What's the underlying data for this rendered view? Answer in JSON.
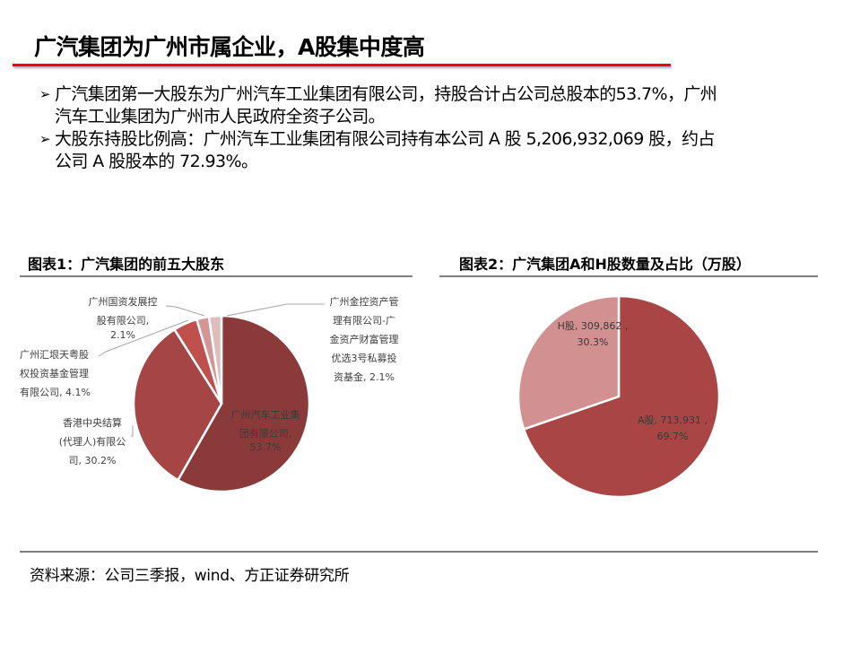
{
  "header": {
    "title": "广汽集团为广州市属企业，A股集中度高"
  },
  "bullets": [
    {
      "marker": "➢",
      "line1": "广汽集团第一大股东为广州汽车工业集团有限公司，持股合计占公司总股本的53.7%，广州",
      "line2": "汽车工业集团为广州市人民政府全资子公司。"
    },
    {
      "marker": "➢",
      "line1": "大股东持股比例高：广州汽车工业集团有限公司持有本公司 A 股 5,206,932,069 股，约占",
      "line2": "公司 A 股股本的 72.93%。"
    }
  ],
  "charts": {
    "chart1_title": "图表1：广汽集团的前五大股东",
    "chart2_title": "图表2：广汽集团A和H股数量及占比（万股）"
  },
  "labels": {
    "c1_s1": [
      "广州汽车工业集",
      "团有限公司,",
      "53.7%"
    ],
    "c1_s2": [
      "香港中央结算",
      "(代理人)有限公",
      "司, 30.2%"
    ],
    "c1_s3": [
      "广州汇垠天粤股",
      "权投资基金管理",
      "有限公司, 4.1%"
    ],
    "c1_s4": [
      "广州国资发展控",
      "股有限公司,",
      "2.1%"
    ],
    "c1_s5": [
      "广州金控资产管",
      "理有限公司-广",
      "金资产财富管理",
      "优选3号私募投",
      "资基金, 2.1%"
    ],
    "c2_a": [
      "A股, 713,931 ,",
      "69.7%"
    ],
    "c2_h": [
      "H股, 309,862 ,",
      "30.3%"
    ]
  },
  "colors": {
    "title_rule": "#ff0000",
    "slice_dark": "#8b3a3a",
    "slice_mid": "#a54545",
    "slice_red": "#c0504d",
    "slice_pink": "#d39595",
    "slice_light": "#e0bdbd",
    "a_share": "#a94545",
    "h_share": "#d39090"
  },
  "footer": {
    "source": "资料来源：公司三季报，wind、方正证券研究所"
  },
  "chart_data": [
    {
      "type": "pie",
      "title": "图表1：广汽集团的前五大股东",
      "categories": [
        "广州汽车工业集团有限公司",
        "香港中央结算(代理人)有限公司",
        "广州汇垠天粤股权投资基金管理有限公司",
        "广州国资发展控股有限公司",
        "广州金控资产管理有限公司-广金资产财富管理优选3号私募投资基金"
      ],
      "values": [
        53.7,
        30.2,
        4.1,
        2.1,
        2.1
      ],
      "unit": "%"
    },
    {
      "type": "pie",
      "title": "图表2：广汽集团A和H股数量及占比（万股）",
      "categories": [
        "A股",
        "H股"
      ],
      "values": [
        713931,
        309862
      ],
      "percentages": [
        69.7,
        30.3
      ],
      "unit": "万股"
    }
  ]
}
